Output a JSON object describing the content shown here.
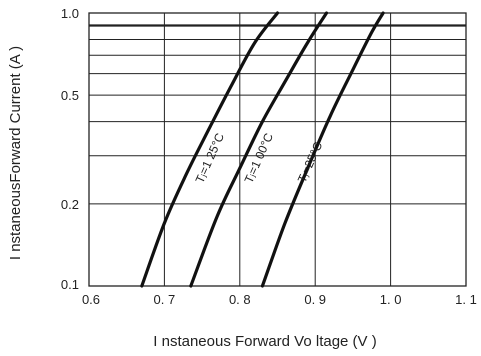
{
  "chart_data": {
    "type": "line",
    "title": "",
    "xlabel": "I nstaneous Forward Vo ltage (V )",
    "ylabel": "I nstaneousForward Current   (A )",
    "x_scale": "linear",
    "y_scale": "log",
    "xlim": [
      0.6,
      1.1
    ],
    "ylim": [
      0.1,
      1.0
    ],
    "x_ticks": [
      0.6,
      0.7,
      0.8,
      0.9,
      1.0,
      1.1
    ],
    "x_tick_labels": [
      "0.6",
      "0. 7",
      "0. 8",
      "0. 9",
      "1. 0",
      "1. 1"
    ],
    "y_ticks": [
      0.1,
      0.2,
      0.5,
      1.0
    ],
    "y_tick_labels": [
      "0.1",
      "0.2",
      "0.5",
      "1.0"
    ],
    "y_grid": [
      0.1,
      0.2,
      0.3,
      0.4,
      0.5,
      0.6,
      0.7,
      0.8,
      0.9,
      1.0
    ],
    "grid": true,
    "series": [
      {
        "name": "Tⱼ=1 25°C",
        "x": [
          0.67,
          0.7,
          0.73,
          0.76,
          0.79,
          0.82,
          0.85
        ],
        "y": [
          0.1,
          0.17,
          0.26,
          0.38,
          0.55,
          0.78,
          1.0
        ]
      },
      {
        "name": "Tⱼ=1 00°C",
        "x": [
          0.735,
          0.77,
          0.8,
          0.83,
          0.86,
          0.89,
          0.915
        ],
        "y": [
          0.1,
          0.18,
          0.27,
          0.4,
          0.56,
          0.78,
          1.0
        ]
      },
      {
        "name": "Tⱼ=25°C",
        "x": [
          0.83,
          0.86,
          0.89,
          0.92,
          0.95,
          0.975,
          0.99
        ],
        "y": [
          0.1,
          0.17,
          0.27,
          0.42,
          0.62,
          0.85,
          1.0
        ]
      }
    ]
  }
}
